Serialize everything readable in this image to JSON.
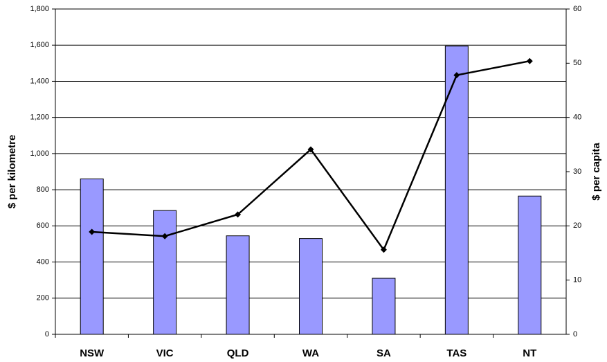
{
  "chart_data": {
    "type": "bar_line",
    "categories": [
      "NSW",
      "VIC",
      "QLD",
      "WA",
      "SA",
      "TAS",
      "NT"
    ],
    "series": [
      {
        "color": "#9999ff",
        "values": [
          860,
          685,
          545,
          530,
          310,
          1595,
          765
        ]
      },
      {
        "color": "#000000",
        "axis": "y2",
        "values": [
          18.9,
          18.1,
          22.1,
          34.1,
          15.6,
          47.8,
          50.4
        ]
      }
    ],
    "ylabel": "$ per kilometre",
    "y2label": "$ per capita",
    "ylim": [
      0,
      1800
    ],
    "yticks": [
      0,
      200,
      400,
      600,
      800,
      {
        "value": 1000,
        "label": "1,000"
      },
      {
        "value": 1200,
        "label": "1,200"
      },
      {
        "value": 1400,
        "label": "1,400"
      },
      {
        "value": 1600,
        "label": "1,600"
      },
      {
        "value": 1800,
        "label": "1,800"
      }
    ],
    "y2lim": [
      0,
      60
    ],
    "y2ticks": [
      0,
      10,
      20,
      30,
      40,
      50,
      60
    ],
    "grid": true
  }
}
